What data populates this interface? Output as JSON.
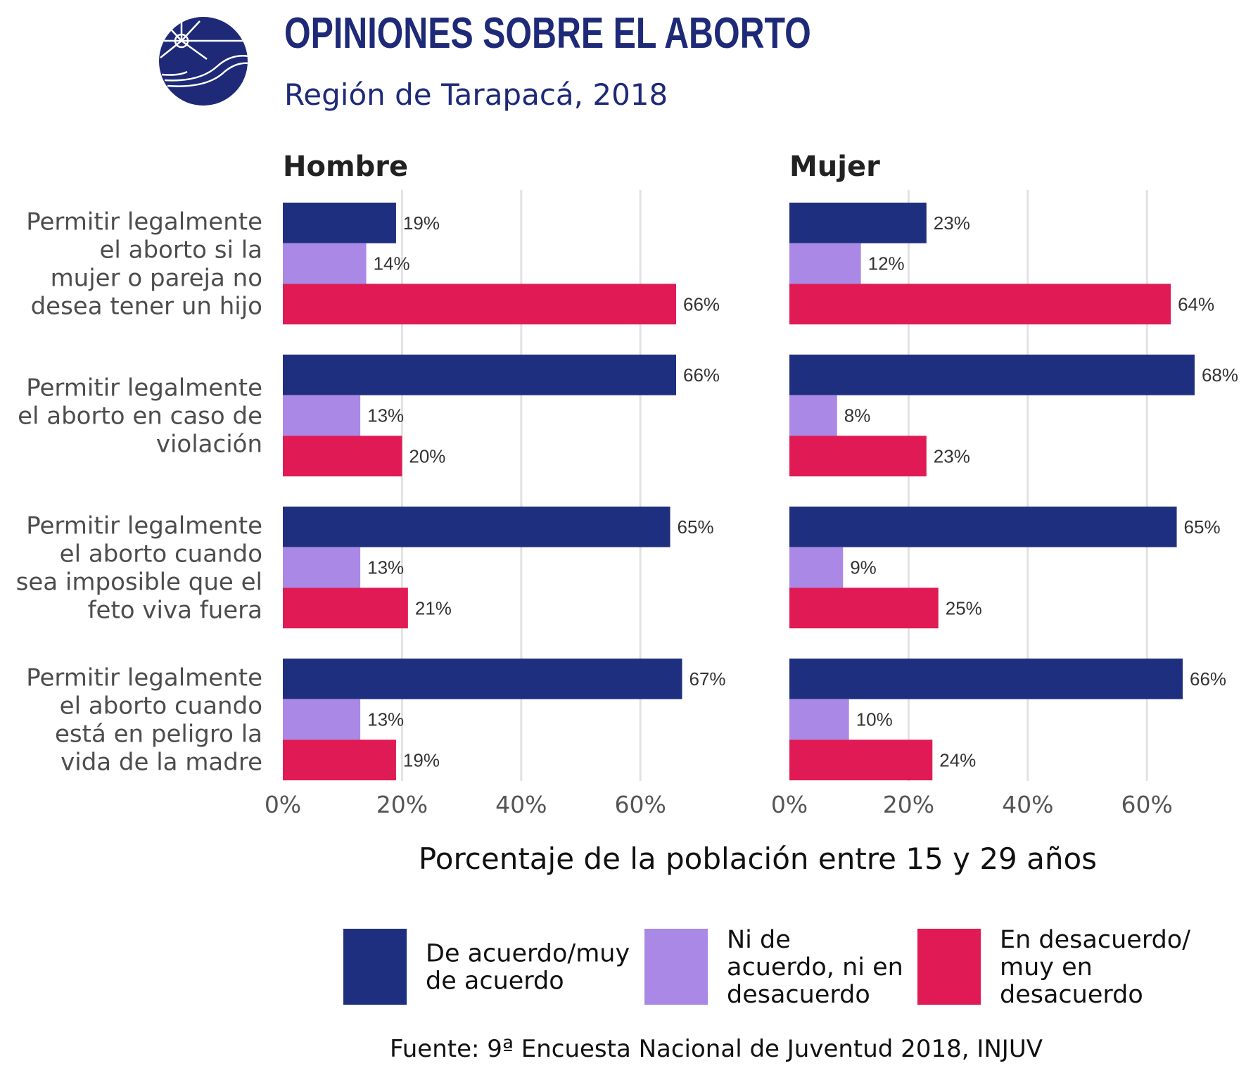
{
  "header": {
    "title": "OPINIONES SOBRE EL ABORTO",
    "subtitle": "Región de Tarapacá, 2018"
  },
  "source": "Fuente: 9ª Encuesta Nacional de Juventud 2018, INJUV",
  "chart_data": {
    "type": "bar",
    "orientation": "horizontal",
    "xlabel": "Porcentaje de la población entre 15 y 29 años",
    "xlim": [
      0,
      70
    ],
    "x_ticks": [
      "0%",
      "20%",
      "40%",
      "60%"
    ],
    "x_tick_values": [
      0,
      20,
      40,
      60
    ],
    "grid": true,
    "legend_position": "bottom",
    "categories": [
      [
        "Permitir legalmente",
        "el aborto si la",
        "mujer o pareja no",
        "desea tener un hijo"
      ],
      [
        "Permitir legalmente",
        "el aborto en caso de",
        "violación"
      ],
      [
        "Permitir legalmente",
        "el aborto cuando",
        "sea imposible que el",
        "feto viva fuera"
      ],
      [
        "Permitir legalmente",
        "el aborto cuando",
        "está en peligro la",
        "vida de la madre"
      ]
    ],
    "series_meta": [
      {
        "name_lines": [
          "De acuerdo/muy",
          "de acuerdo"
        ],
        "color": "#1f2f80"
      },
      {
        "name_lines": [
          "Ni de",
          "acuerdo, ni en",
          "desacuerdo"
        ],
        "color": "#aa88e6"
      },
      {
        "name_lines": [
          "En desacuerdo/",
          "muy en",
          "desacuerdo"
        ],
        "color": "#e01a55"
      }
    ],
    "panels": [
      {
        "title": "Hombre",
        "series": [
          {
            "values": [
              19,
              66,
              65,
              67
            ]
          },
          {
            "values": [
              14,
              13,
              13,
              13
            ]
          },
          {
            "values": [
              66,
              20,
              21,
              19
            ]
          }
        ]
      },
      {
        "title": "Mujer",
        "series": [
          {
            "values": [
              23,
              68,
              65,
              66
            ]
          },
          {
            "values": [
              12,
              8,
              9,
              10
            ]
          },
          {
            "values": [
              64,
              23,
              25,
              24
            ]
          }
        ]
      }
    ]
  }
}
